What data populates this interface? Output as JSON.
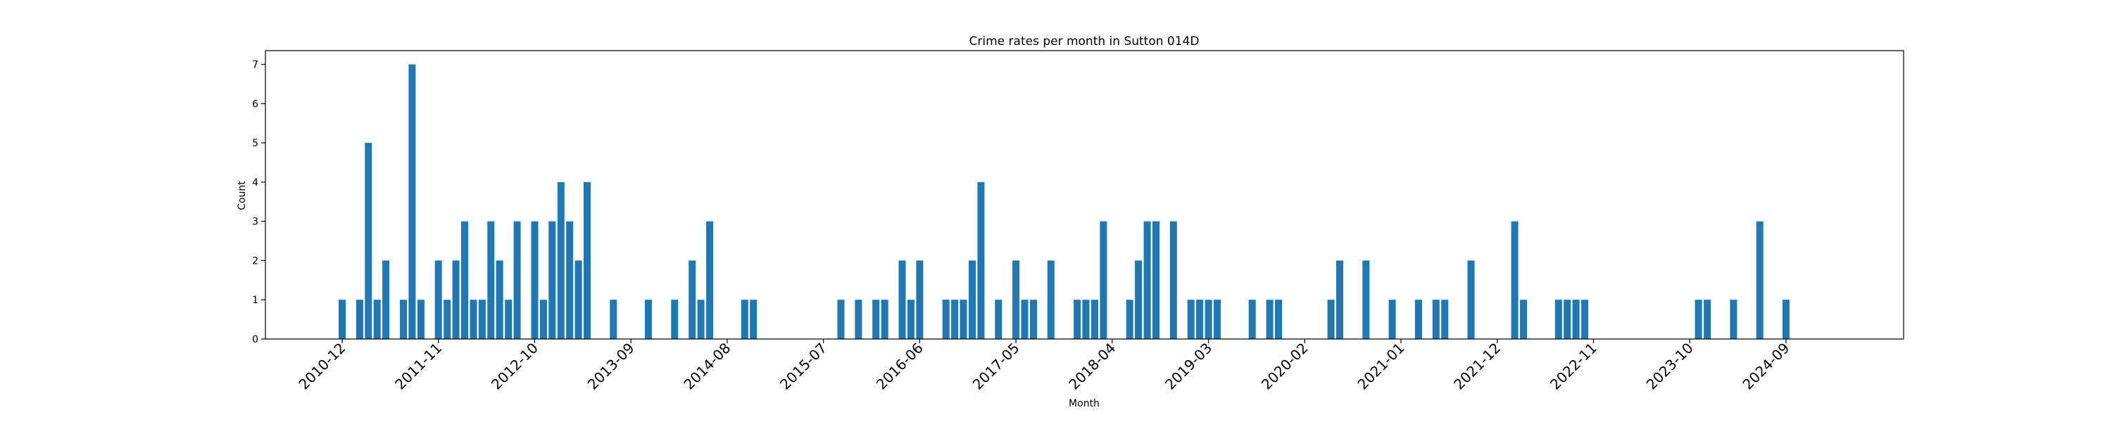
{
  "chart_data": {
    "type": "bar",
    "title": "Crime rates per month in Sutton 014D",
    "xlabel": "Month",
    "ylabel": "Count",
    "ylim": [
      0,
      7.35
    ],
    "yticks": [
      0,
      1,
      2,
      3,
      4,
      5,
      6,
      7
    ],
    "xtick_labels": [
      "2010-12",
      "2011-11",
      "2012-10",
      "2013-09",
      "2014-08",
      "2015-07",
      "2016-06",
      "2017-05",
      "2018-04",
      "2019-03",
      "2020-02",
      "2021-01",
      "2021-12",
      "2022-11",
      "2023-10",
      "2024-09"
    ],
    "bar_color": "#1f77b4",
    "x": [
      "2010-12",
      "2011-02",
      "2011-03",
      "2011-04",
      "2011-05",
      "2011-07",
      "2011-08",
      "2011-09",
      "2011-11",
      "2011-12",
      "2012-01",
      "2012-02",
      "2012-03",
      "2012-04",
      "2012-05",
      "2012-06",
      "2012-07",
      "2012-08",
      "2012-10",
      "2012-11",
      "2012-12",
      "2013-01",
      "2013-02",
      "2013-03",
      "2013-04",
      "2013-07",
      "2013-11",
      "2014-02",
      "2014-04",
      "2014-05",
      "2014-06",
      "2014-10",
      "2014-11",
      "2015-09",
      "2015-11",
      "2016-01",
      "2016-02",
      "2016-04",
      "2016-05",
      "2016-06",
      "2016-09",
      "2016-10",
      "2016-11",
      "2016-12",
      "2017-01",
      "2017-03",
      "2017-05",
      "2017-06",
      "2017-07",
      "2017-09",
      "2017-12",
      "2018-01",
      "2018-02",
      "2018-03",
      "2018-06",
      "2018-07",
      "2018-08",
      "2018-09",
      "2018-11",
      "2019-01",
      "2019-02",
      "2019-03",
      "2019-04",
      "2019-08",
      "2019-10",
      "2019-11",
      "2020-05",
      "2020-06",
      "2020-09",
      "2020-12",
      "2021-03",
      "2021-05",
      "2021-06",
      "2021-09",
      "2022-02",
      "2022-03",
      "2022-07",
      "2022-08",
      "2022-09",
      "2022-10",
      "2023-11",
      "2023-12",
      "2024-03",
      "2024-06",
      "2024-09"
    ],
    "values": [
      1,
      1,
      5,
      1,
      2,
      1,
      7,
      1,
      2,
      1,
      2,
      3,
      1,
      1,
      3,
      2,
      1,
      3,
      3,
      1,
      3,
      4,
      3,
      2,
      4,
      1,
      1,
      1,
      2,
      1,
      3,
      1,
      1,
      1,
      1,
      1,
      1,
      2,
      1,
      2,
      1,
      1,
      1,
      2,
      4,
      1,
      2,
      1,
      1,
      2,
      1,
      1,
      1,
      3,
      1,
      2,
      3,
      3,
      3,
      1,
      1,
      1,
      1,
      1,
      1,
      1,
      1,
      2,
      2,
      1,
      1,
      1,
      1,
      2,
      3,
      1,
      1,
      1,
      1,
      1,
      1,
      1,
      1,
      3,
      1
    ]
  }
}
